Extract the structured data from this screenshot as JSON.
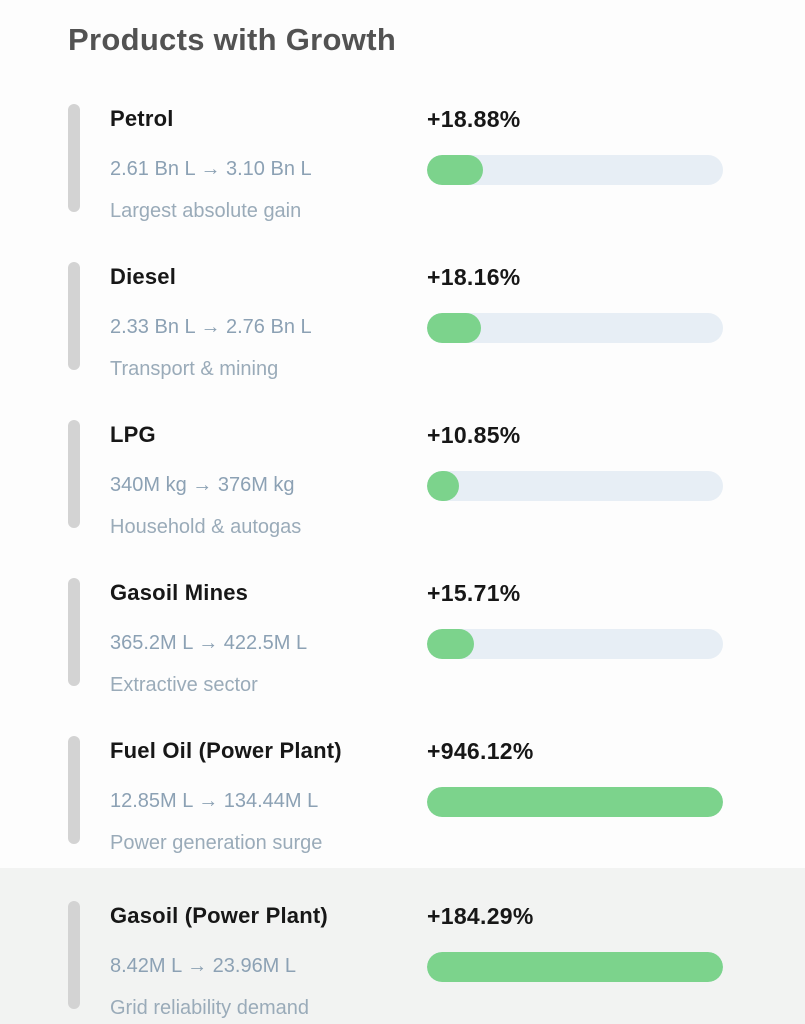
{
  "header": {
    "title": "Products with Growth"
  },
  "colors": {
    "progress_fill": "#7cd38c",
    "progress_track": "#e7eef5",
    "accent_bar": "#d3d3d3",
    "header_text": "#525252",
    "item_text": "#171717",
    "range_text": "#8ca1b4",
    "note_text": "#9aabb9",
    "bottom_band": "#f2f3f2"
  },
  "chart_data": {
    "type": "bar",
    "title": "Products with Growth",
    "categories": [
      "Petrol",
      "Diesel",
      "LPG",
      "Gasoil Mines",
      "Fuel Oil (Power Plant)",
      "Gasoil (Power Plant)"
    ],
    "values": [
      18.88,
      18.16,
      10.85,
      15.71,
      946.12,
      184.29
    ],
    "value_unit": "% growth",
    "bar_scale": "fill width = min(growth %, 100) of track",
    "series_detail": [
      {
        "name": "Petrol",
        "from": "2.61 Bn L",
        "to": "3.10 Bn L",
        "growth_pct": 18.88
      },
      {
        "name": "Diesel",
        "from": "2.33 Bn L",
        "to": "2.76 Bn L",
        "growth_pct": 18.16
      },
      {
        "name": "LPG",
        "from": "340M kg",
        "to": "376M kg",
        "growth_pct": 10.85
      },
      {
        "name": "Gasoil Mines",
        "from": "365.2M L",
        "to": "422.5M L",
        "growth_pct": 15.71
      },
      {
        "name": "Fuel Oil (Power Plant)",
        "from": "12.85M L",
        "to": "134.44M L",
        "growth_pct": 946.12
      },
      {
        "name": "Gasoil (Power Plant)",
        "from": "8.42M L",
        "to": "23.96M L",
        "growth_pct": 184.29
      }
    ]
  },
  "products": [
    {
      "name": "Petrol",
      "percent": "+18.88%",
      "growth_pct": 18.88,
      "range": "2.61 Bn L → 3.10 Bn L",
      "note": "Largest absolute gain"
    },
    {
      "name": "Diesel",
      "percent": "+18.16%",
      "growth_pct": 18.16,
      "range": "2.33 Bn L → 2.76 Bn L",
      "note": "Transport & mining"
    },
    {
      "name": "LPG",
      "percent": "+10.85%",
      "growth_pct": 10.85,
      "range": "340M kg → 376M kg",
      "note": "Household & autogas"
    },
    {
      "name": "Gasoil Mines",
      "percent": "+15.71%",
      "growth_pct": 15.71,
      "range": "365.2M L → 422.5M L",
      "note": "Extractive sector"
    },
    {
      "name": "Fuel Oil (Power Plant)",
      "percent": "+946.12%",
      "growth_pct": 946.12,
      "range": "12.85M L → 134.44M L",
      "note": "Power generation surge"
    },
    {
      "name": "Gasoil (Power Plant)",
      "percent": "+184.29%",
      "growth_pct": 184.29,
      "range": "8.42M L → 23.96M L",
      "note": "Grid reliability demand"
    }
  ]
}
